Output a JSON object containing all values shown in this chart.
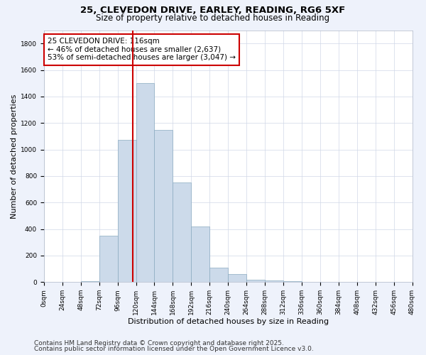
{
  "title_line1": "25, CLEVEDON DRIVE, EARLEY, READING, RG6 5XF",
  "title_line2": "Size of property relative to detached houses in Reading",
  "xlabel": "Distribution of detached houses by size in Reading",
  "ylabel": "Number of detached properties",
  "bar_values": [
    0,
    0,
    5,
    350,
    1070,
    1500,
    1150,
    750,
    420,
    110,
    60,
    20,
    10,
    5,
    2,
    1,
    0,
    0,
    0,
    0
  ],
  "bin_edges": [
    0,
    24,
    48,
    72,
    96,
    120,
    144,
    168,
    192,
    216,
    240,
    264,
    288,
    312,
    336,
    360,
    384,
    408,
    432,
    456,
    480
  ],
  "bar_color": "#ccdaea",
  "bar_edgecolor": "#8aaac0",
  "property_size": 116,
  "vline_color": "#cc0000",
  "annotation_line1": "25 CLEVEDON DRIVE: 116sqm",
  "annotation_line2": "← 46% of detached houses are smaller (2,637)",
  "annotation_line3": "53% of semi-detached houses are larger (3,047) →",
  "annotation_box_edgecolor": "#cc0000",
  "annotation_box_facecolor": "#ffffff",
  "ylim": [
    0,
    1900
  ],
  "yticks": [
    0,
    200,
    400,
    600,
    800,
    1000,
    1200,
    1400,
    1600,
    1800
  ],
  "xtick_labels": [
    "0sqm",
    "24sqm",
    "48sqm",
    "72sqm",
    "96sqm",
    "120sqm",
    "144sqm",
    "168sqm",
    "192sqm",
    "216sqm",
    "240sqm",
    "264sqm",
    "288sqm",
    "312sqm",
    "336sqm",
    "360sqm",
    "384sqm",
    "408sqm",
    "432sqm",
    "456sqm",
    "480sqm"
  ],
  "footnote1": "Contains HM Land Registry data © Crown copyright and database right 2025.",
  "footnote2": "Contains public sector information licensed under the Open Government Licence v3.0.",
  "bg_color": "#eef2fb",
  "plot_bg_color": "#ffffff",
  "grid_color": "#d0d8e8",
  "title_fontsize": 9.5,
  "subtitle_fontsize": 8.5,
  "axis_label_fontsize": 8,
  "tick_fontsize": 6.5,
  "annotation_fontsize": 7.5,
  "footnote_fontsize": 6.5
}
